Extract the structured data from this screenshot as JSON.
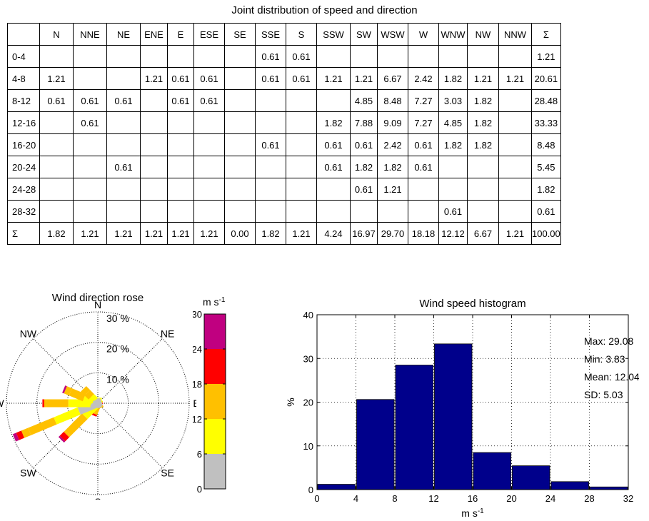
{
  "table": {
    "title": "Joint distribution of speed and direction",
    "corner": "",
    "columns": [
      "N",
      "NNE",
      "NE",
      "ENE",
      "E",
      "ESE",
      "SE",
      "SSE",
      "S",
      "SSW",
      "SW",
      "WSW",
      "W",
      "WNW",
      "NW",
      "NNW",
      "Σ"
    ],
    "rows": [
      {
        "label": "0-4",
        "cells": [
          "",
          "",
          "",
          "",
          "",
          "",
          "",
          "0.61",
          "0.61",
          "",
          "",
          "",
          "",
          "",
          "",
          "",
          "1.21"
        ]
      },
      {
        "label": "4-8",
        "cells": [
          "1.21",
          "",
          "",
          "1.21",
          "0.61",
          "0.61",
          "",
          "0.61",
          "0.61",
          "1.21",
          "1.21",
          "6.67",
          "2.42",
          "1.82",
          "1.21",
          "1.21",
          "20.61"
        ]
      },
      {
        "label": "8-12",
        "cells": [
          "0.61",
          "0.61",
          "0.61",
          "",
          "0.61",
          "0.61",
          "",
          "",
          "",
          "",
          "4.85",
          "8.48",
          "7.27",
          "3.03",
          "1.82",
          "",
          "28.48"
        ]
      },
      {
        "label": "12-16",
        "cells": [
          "",
          "0.61",
          "",
          "",
          "",
          "",
          "",
          "",
          "",
          "1.82",
          "7.88",
          "9.09",
          "7.27",
          "4.85",
          "1.82",
          "",
          "33.33"
        ]
      },
      {
        "label": "16-20",
        "cells": [
          "",
          "",
          "",
          "",
          "",
          "",
          "",
          "0.61",
          "",
          "0.61",
          "0.61",
          "2.42",
          "0.61",
          "1.82",
          "1.82",
          "",
          "8.48"
        ]
      },
      {
        "label": "20-24",
        "cells": [
          "",
          "",
          "0.61",
          "",
          "",
          "",
          "",
          "",
          "",
          "0.61",
          "1.82",
          "1.82",
          "0.61",
          "",
          "",
          "",
          "5.45"
        ]
      },
      {
        "label": "24-28",
        "cells": [
          "",
          "",
          "",
          "",
          "",
          "",
          "",
          "",
          "",
          "",
          "0.61",
          "1.21",
          "",
          "",
          "",
          "",
          "1.82"
        ]
      },
      {
        "label": "28-32",
        "cells": [
          "",
          "",
          "",
          "",
          "",
          "",
          "",
          "",
          "",
          "",
          "",
          "",
          "",
          "0.61",
          "",
          "",
          "0.61"
        ]
      },
      {
        "label": "Σ",
        "cells": [
          "1.82",
          "1.21",
          "1.21",
          "1.21",
          "1.21",
          "1.21",
          "0.00",
          "1.82",
          "1.21",
          "4.24",
          "16.97",
          "29.70",
          "18.18",
          "12.12",
          "6.67",
          "1.21",
          "100.00"
        ]
      }
    ]
  },
  "chart_data": [
    {
      "type": "rose",
      "title": "Wind direction rose",
      "directions": [
        "N",
        "NNE",
        "NE",
        "ENE",
        "E",
        "ESE",
        "SE",
        "SSE",
        "S",
        "SSW",
        "SW",
        "WSW",
        "W",
        "WNW",
        "NW",
        "NNW"
      ],
      "direction_labels": [
        "N",
        "NE",
        "E",
        "SE",
        "S",
        "SW",
        "W",
        "NW"
      ],
      "ring_values": [
        10,
        20,
        30
      ],
      "ring_labels": [
        "10 %",
        "20 %",
        "30 %"
      ],
      "rmax": 30,
      "speed_bins": [
        "0-4",
        "4-8",
        "8-12",
        "12-16",
        "16-20",
        "20-24",
        "24-28",
        "28-32"
      ],
      "values_by_direction": {
        "N": [
          0,
          1.21,
          0.61,
          0,
          0,
          0,
          0,
          0
        ],
        "NNE": [
          0,
          0,
          0.61,
          0.61,
          0,
          0,
          0,
          0
        ],
        "NE": [
          0,
          0,
          0.61,
          0,
          0,
          0.61,
          0,
          0
        ],
        "ENE": [
          0,
          1.21,
          0,
          0,
          0,
          0,
          0,
          0
        ],
        "E": [
          0,
          0.61,
          0.61,
          0,
          0,
          0,
          0,
          0
        ],
        "ESE": [
          0,
          0.61,
          0.61,
          0,
          0,
          0,
          0,
          0
        ],
        "SE": [
          0,
          0,
          0,
          0,
          0,
          0,
          0,
          0
        ],
        "SSE": [
          0.61,
          0.61,
          0,
          0,
          0.61,
          0,
          0,
          0
        ],
        "S": [
          0.61,
          0.61,
          0,
          0,
          0,
          0,
          0,
          0
        ],
        "SSW": [
          0,
          1.21,
          0,
          1.82,
          0.61,
          0.61,
          0,
          0
        ],
        "SW": [
          0,
          1.21,
          4.85,
          7.88,
          0.61,
          1.82,
          0.61,
          0
        ],
        "WSW": [
          0,
          6.67,
          8.48,
          9.09,
          2.42,
          1.82,
          1.21,
          0
        ],
        "W": [
          0,
          2.42,
          7.27,
          7.27,
          0.61,
          0.61,
          0,
          0
        ],
        "WNW": [
          0,
          1.82,
          3.03,
          4.85,
          1.82,
          0,
          0,
          0.61
        ],
        "NW": [
          0,
          1.21,
          1.82,
          1.82,
          1.82,
          0,
          0,
          0
        ],
        "NNW": [
          0,
          1.21,
          0,
          0,
          0,
          0,
          0,
          0
        ]
      }
    },
    {
      "type": "colorbar",
      "title": "m s",
      "title_sup": "-1",
      "ticks": [
        0,
        6,
        12,
        18,
        24,
        30
      ],
      "bands": [
        {
          "from": 0,
          "to": 6,
          "color": "#c0c0c0"
        },
        {
          "from": 6,
          "to": 12,
          "color": "#ffff00"
        },
        {
          "from": 12,
          "to": 18,
          "color": "#ffc000"
        },
        {
          "from": 18,
          "to": 24,
          "color": "#ff0000"
        },
        {
          "from": 24,
          "to": 30,
          "color": "#c00080"
        }
      ]
    },
    {
      "type": "bar",
      "title": "Wind speed histogram",
      "xlabel": "m s",
      "xlabel_sup": "-1",
      "ylabel": "%",
      "bin_edges": [
        0,
        4,
        8,
        12,
        16,
        20,
        24,
        28,
        32
      ],
      "values": [
        1.21,
        20.61,
        28.48,
        33.33,
        8.48,
        5.45,
        1.82,
        0.61
      ],
      "xlim": [
        0,
        32
      ],
      "ylim": [
        0,
        40
      ],
      "xticks": [
        0,
        4,
        8,
        12,
        16,
        20,
        24,
        28,
        32
      ],
      "yticks": [
        0,
        10,
        20,
        30,
        40
      ],
      "grid": true,
      "bar_color": "#00008b",
      "stats": [
        "Max: 29.08",
        "Min: 3.83",
        "Mean: 12.04",
        "SD: 5.03"
      ]
    }
  ]
}
